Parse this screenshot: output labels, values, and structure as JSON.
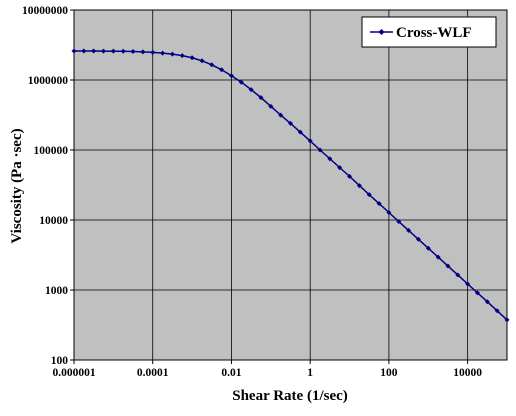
{
  "chart_data": {
    "type": "line",
    "title": "",
    "xlabel": "Shear Rate (1/sec)",
    "ylabel": "Viscosity (Pa ·sec)",
    "x_scale": "log",
    "y_scale": "log",
    "xlim": [
      1e-06,
      100000
    ],
    "ylim": [
      100,
      10000000
    ],
    "x_tick_labels": [
      "0.000001",
      "0.0001",
      "0.01",
      "1",
      "100",
      "10000"
    ],
    "x_tick_values": [
      1e-06,
      0.0001,
      0.01,
      1,
      100,
      10000
    ],
    "y_tick_labels": [
      "100",
      "1000",
      "10000",
      "100000",
      "1000000",
      "10000000"
    ],
    "y_tick_values": [
      100,
      1000,
      10000,
      100000,
      1000000,
      10000000
    ],
    "grid": true,
    "legend_position": "top-right",
    "plot_background": "#c0c0c0",
    "series": [
      {
        "name": "Cross-WLF",
        "color": "#000080",
        "marker": "diamond",
        "x": [
          1e-06,
          1.78e-06,
          3.16e-06,
          5.62e-06,
          1e-05,
          1.78e-05,
          3.16e-05,
          5.62e-05,
          0.0001,
          0.000178,
          0.000316,
          0.000562,
          0.001,
          0.00178,
          0.00316,
          0.00562,
          0.01,
          0.0178,
          0.0316,
          0.0562,
          0.1,
          0.178,
          0.316,
          0.562,
          1,
          1.78,
          3.16,
          5.62,
          10,
          17.8,
          31.6,
          56.2,
          100,
          178,
          316,
          562,
          1000,
          1780,
          3160,
          5620,
          10000,
          17800,
          31600,
          56200,
          100000
        ],
        "y": [
          2600000,
          2600000,
          2600000,
          2590000,
          2580000,
          2570000,
          2550000,
          2520000,
          2480000,
          2420000,
          2340000,
          2230000,
          2080000,
          1880000,
          1650000,
          1400000,
          1150000,
          930000,
          730000,
          560000,
          420000,
          315000,
          240000,
          180000,
          135000,
          100000,
          75000,
          56000,
          42000,
          31000,
          23000,
          17200,
          12800,
          9500,
          7100,
          5300,
          3950,
          2950,
          2200,
          1640,
          1220,
          910,
          680,
          505,
          375
        ]
      }
    ]
  }
}
